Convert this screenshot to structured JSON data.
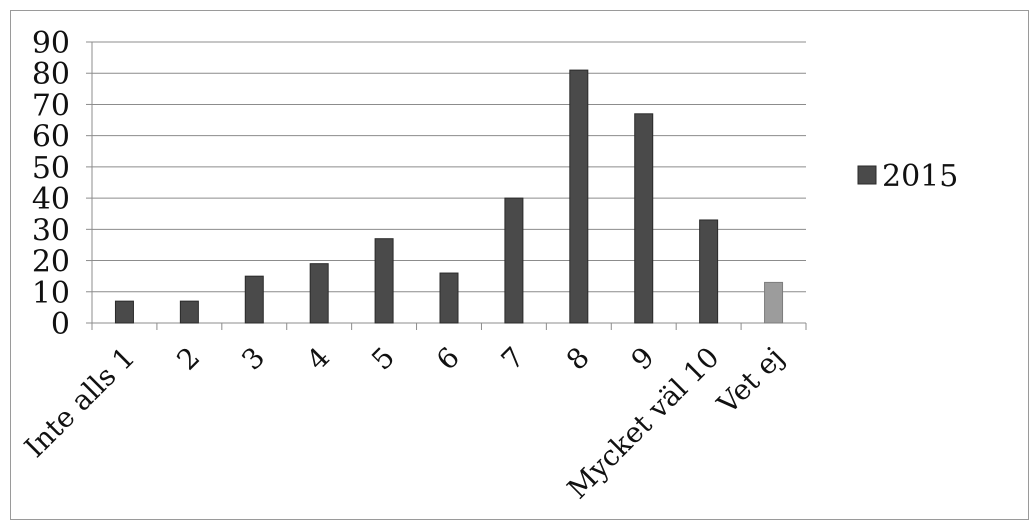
{
  "chart_data": {
    "type": "bar",
    "categories": [
      "Inte alls 1",
      "2",
      "3",
      "4",
      "5",
      "6",
      "7",
      "8",
      "9",
      "Mycket väl 10",
      "Vet ej"
    ],
    "series": [
      {
        "name": "2015",
        "values": [
          7,
          7,
          15,
          19,
          27,
          16,
          40,
          81,
          67,
          33,
          13
        ],
        "color": "#4a4a4a",
        "highlight": {
          "index": 10,
          "color": "#9c9c9c"
        }
      }
    ],
    "ylim": [
      0,
      90
    ],
    "yticks": [
      0,
      10,
      20,
      30,
      40,
      50,
      60,
      70,
      80,
      90
    ],
    "grid": true,
    "legend": "right"
  }
}
